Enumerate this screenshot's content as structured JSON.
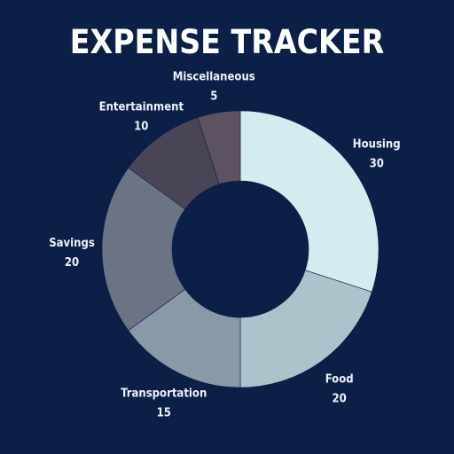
{
  "chart_data": {
    "type": "pie",
    "title": "EXPENSE TRACKER",
    "donut": true,
    "categories": [
      "Housing",
      "Food",
      "Transportation",
      "Savings",
      "Entertainment",
      "Miscellaneous"
    ],
    "values": [
      30,
      20,
      15,
      20,
      10,
      5
    ],
    "colors": [
      "#d4ecef",
      "#aec2cb",
      "#8a99a8",
      "#6b7385",
      "#4a4556",
      "#5c5261"
    ],
    "background": "#0b1f47",
    "label_color": "#eef2f7",
    "legend": "none"
  }
}
